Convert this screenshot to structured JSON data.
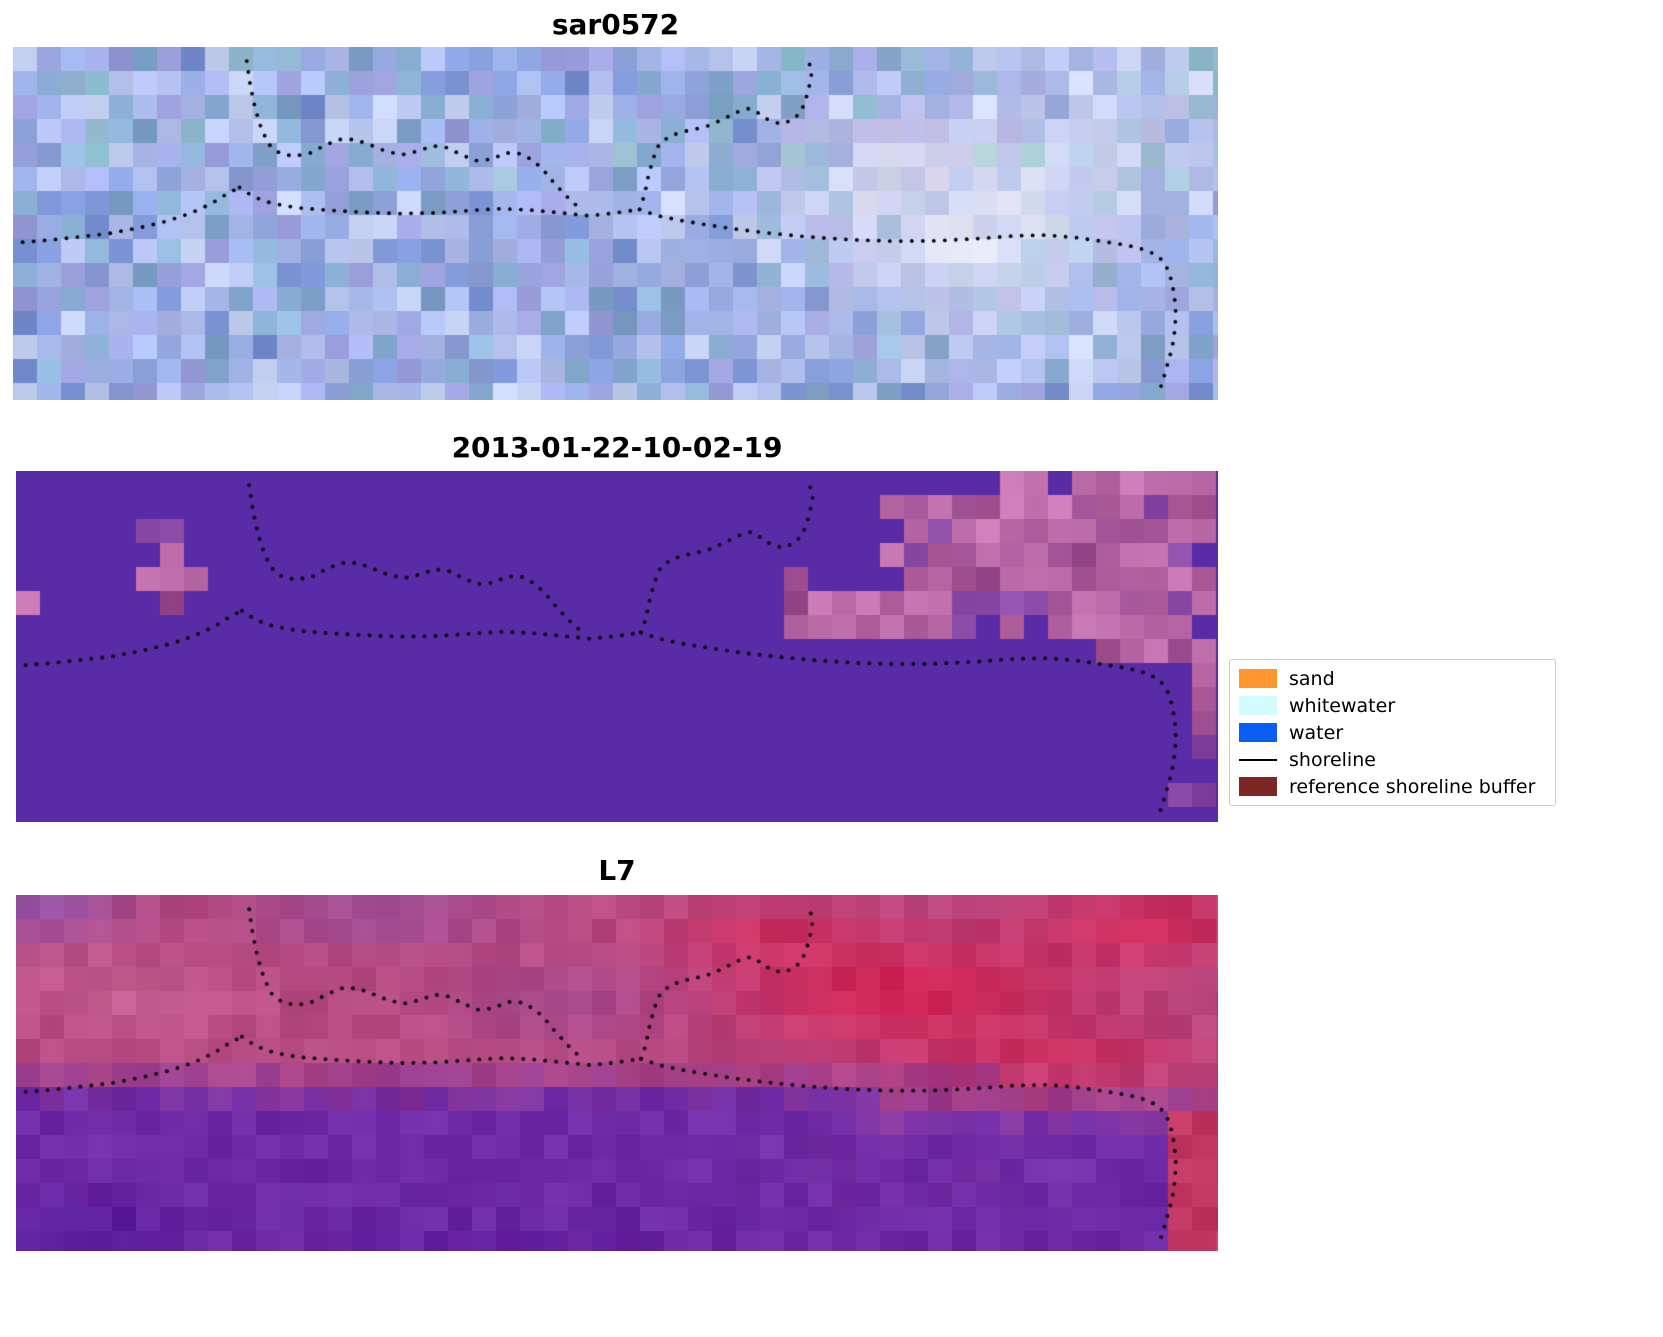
{
  "panels": [
    {
      "title": "sar0572"
    },
    {
      "title": "2013-01-22-10-02-19"
    },
    {
      "title": "L7"
    }
  ],
  "legend": {
    "items": [
      {
        "label": "sand",
        "color": "#ff962e",
        "type": "patch"
      },
      {
        "label": "whitewater",
        "color": "#d2fbff",
        "type": "patch"
      },
      {
        "label": "water",
        "color": "#0b5ef2",
        "type": "patch"
      },
      {
        "label": "shoreline",
        "color": "#000000",
        "type": "line"
      },
      {
        "label": "reference shoreline buffer",
        "color": "#7c2626",
        "type": "patch"
      }
    ]
  },
  "chart_data": {
    "type": "heatmap",
    "title": "",
    "panels": [
      {
        "title": "sar0572"
      },
      {
        "title": "2013-01-22-10-02-19"
      },
      {
        "title": "L7"
      }
    ],
    "legend_entries": [
      "sand",
      "whitewater",
      "water",
      "shoreline",
      "reference shoreline buffer"
    ],
    "series": [
      {
        "name": "shoreline",
        "marker": "dotted-black",
        "coords": "normalized-panel-fraction",
        "polylines": [
          [
            [
              0.008,
              0.553
            ],
            [
              0.03,
              0.547
            ],
            [
              0.055,
              0.538
            ],
            [
              0.08,
              0.528
            ],
            [
              0.105,
              0.512
            ],
            [
              0.128,
              0.493
            ],
            [
              0.148,
              0.47
            ],
            [
              0.165,
              0.443
            ],
            [
              0.178,
              0.415
            ],
            [
              0.188,
              0.398
            ]
          ],
          [
            [
              0.194,
              0.04
            ],
            [
              0.197,
              0.11
            ],
            [
              0.201,
              0.175
            ],
            [
              0.206,
              0.23
            ],
            [
              0.212,
              0.275
            ],
            [
              0.221,
              0.3
            ],
            [
              0.233,
              0.31
            ],
            [
              0.247,
              0.3
            ],
            [
              0.259,
              0.278
            ],
            [
              0.271,
              0.262
            ],
            [
              0.284,
              0.262
            ],
            [
              0.297,
              0.278
            ],
            [
              0.31,
              0.296
            ],
            [
              0.323,
              0.305
            ],
            [
              0.336,
              0.295
            ],
            [
              0.348,
              0.28
            ],
            [
              0.36,
              0.285
            ],
            [
              0.372,
              0.305
            ],
            [
              0.384,
              0.322
            ],
            [
              0.397,
              0.318
            ],
            [
              0.409,
              0.3
            ],
            [
              0.421,
              0.302
            ],
            [
              0.432,
              0.322
            ],
            [
              0.441,
              0.352
            ],
            [
              0.449,
              0.385
            ],
            [
              0.458,
              0.418
            ],
            [
              0.465,
              0.442
            ],
            [
              0.47,
              0.455
            ]
          ],
          [
            [
              0.188,
              0.398
            ],
            [
              0.2,
              0.425
            ],
            [
              0.215,
              0.443
            ],
            [
              0.235,
              0.455
            ],
            [
              0.26,
              0.462
            ],
            [
              0.29,
              0.468
            ],
            [
              0.32,
              0.472
            ],
            [
              0.35,
              0.47
            ],
            [
              0.38,
              0.463
            ],
            [
              0.405,
              0.458
            ],
            [
              0.43,
              0.462
            ],
            [
              0.455,
              0.47
            ],
            [
              0.478,
              0.478
            ],
            [
              0.5,
              0.47
            ],
            [
              0.52,
              0.46
            ]
          ],
          [
            [
              0.52,
              0.46
            ],
            [
              0.524,
              0.42
            ],
            [
              0.527,
              0.37
            ],
            [
              0.531,
              0.318
            ],
            [
              0.536,
              0.277
            ],
            [
              0.545,
              0.252
            ],
            [
              0.556,
              0.24
            ],
            [
              0.567,
              0.232
            ],
            [
              0.578,
              0.222
            ],
            [
              0.59,
              0.203
            ],
            [
              0.602,
              0.183
            ],
            [
              0.611,
              0.174
            ],
            [
              0.619,
              0.188
            ],
            [
              0.627,
              0.207
            ],
            [
              0.637,
              0.218
            ],
            [
              0.647,
              0.207
            ],
            [
              0.654,
              0.183
            ],
            [
              0.658,
              0.148
            ],
            [
              0.661,
              0.108
            ],
            [
              0.663,
              0.07
            ],
            [
              0.66,
              0.038
            ]
          ],
          [
            [
              0.52,
              0.46
            ],
            [
              0.535,
              0.478
            ],
            [
              0.555,
              0.492
            ],
            [
              0.578,
              0.505
            ],
            [
              0.602,
              0.517
            ],
            [
              0.63,
              0.528
            ],
            [
              0.66,
              0.538
            ],
            [
              0.695,
              0.546
            ],
            [
              0.73,
              0.55
            ],
            [
              0.765,
              0.549
            ],
            [
              0.8,
              0.543
            ],
            [
              0.832,
              0.535
            ],
            [
              0.858,
              0.533
            ],
            [
              0.882,
              0.54
            ],
            [
              0.905,
              0.551
            ],
            [
              0.925,
              0.562
            ],
            [
              0.942,
              0.577
            ],
            [
              0.952,
              0.598
            ],
            [
              0.958,
              0.628
            ],
            [
              0.962,
              0.668
            ],
            [
              0.964,
              0.712
            ],
            [
              0.965,
              0.758
            ],
            [
              0.964,
              0.805
            ],
            [
              0.962,
              0.852
            ],
            [
              0.958,
              0.9
            ],
            [
              0.954,
              0.948
            ],
            [
              0.951,
              0.978
            ]
          ]
        ]
      }
    ]
  },
  "render": {
    "sar": {
      "seed": 42,
      "block": 24,
      "palette": [
        "#7d95d6",
        "#8ba2e0",
        "#9aaee6",
        "#a9bbec",
        "#b9c7f0",
        "#93a6de",
        "#a3aee8",
        "#c6d2f4",
        "#8fb4da",
        "#86a8d0",
        "#9b9fdc",
        "#b0bcec"
      ],
      "bright": "#f3f1f9",
      "pink_tint": "#ebd8e8",
      "teal_tint": "#7cc2b2"
    },
    "classified": {
      "seed": 7,
      "block": 24,
      "base": "#5a2ba6",
      "pink_palette": [
        "#b2609e",
        "#bd6da9",
        "#a75796",
        "#c677b1",
        "#9d4e90",
        "#b566a2"
      ],
      "pink_rects": [
        [
          0.829,
          0.0,
          0.171,
          0.4
        ],
        [
          0.731,
          0.083,
          0.269,
          0.32
        ],
        [
          0.636,
          0.33,
          0.364,
          0.126
        ],
        [
          0.864,
          0.456,
          0.136,
          0.064
        ],
        [
          0.975,
          0.0,
          0.025,
          1.0
        ],
        [
          0.107,
          0.175,
          0.045,
          0.205
        ],
        [
          0.0,
          0.26,
          0.013,
          0.16
        ]
      ]
    },
    "l7": {
      "seed": 99,
      "block": 24,
      "top_base": "#b64a82",
      "bottom_base": "#6e2aa6",
      "crimson": "#d62150",
      "purple_tint": "#8a54b2",
      "pink_light": "#cf6f9d",
      "dark_purple": "#4c1292",
      "magenta_tint": "#8e3c9c",
      "red_edge": "#c63058"
    }
  }
}
